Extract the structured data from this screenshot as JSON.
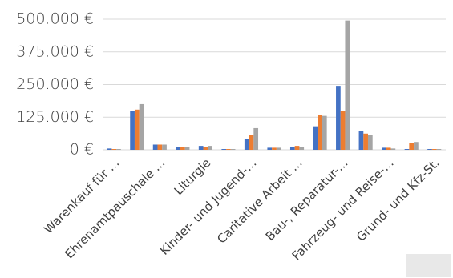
{
  "chart_data": {
    "type": "bar",
    "categories": [
      "Warenkauf für ...",
      null,
      "Ehrenamtpauschale ...",
      null,
      "Liturgie",
      null,
      "Kinder- und Jugend-...",
      null,
      "Caritative Arbeit ...",
      null,
      "Bau-, Reparatur-...",
      null,
      "Fahrzeug- und Reise-...",
      null,
      "Grund- und Kfz-St."
    ],
    "series": [
      {
        "color": "#4472c4",
        "values": [
          5000,
          150000,
          20000,
          12000,
          15000,
          3000,
          40000,
          8000,
          10000,
          90000,
          245000,
          73000,
          8000,
          3000,
          3000
        ]
      },
      {
        "color": "#ed7d31",
        "values": [
          3000,
          154000,
          20000,
          12000,
          12000,
          3000,
          58000,
          8000,
          15000,
          135000,
          150000,
          62000,
          8000,
          25000,
          3000
        ]
      },
      {
        "color": "#a5a5a5",
        "values": [
          3000,
          175000,
          20000,
          12000,
          15000,
          3000,
          83000,
          8000,
          10000,
          130000,
          495000,
          58000,
          5000,
          30000,
          3000
        ]
      }
    ],
    "ylim": [
      0,
      500000
    ],
    "yticks": [
      {
        "value": 0,
        "label": "0 €"
      },
      {
        "value": 125000,
        "label": "125.000 €"
      },
      {
        "value": 250000,
        "label": "250.000 €"
      },
      {
        "value": 375000,
        "label": "375.000 €"
      },
      {
        "value": 500000,
        "label": "500.000 €"
      }
    ],
    "grid": true
  }
}
